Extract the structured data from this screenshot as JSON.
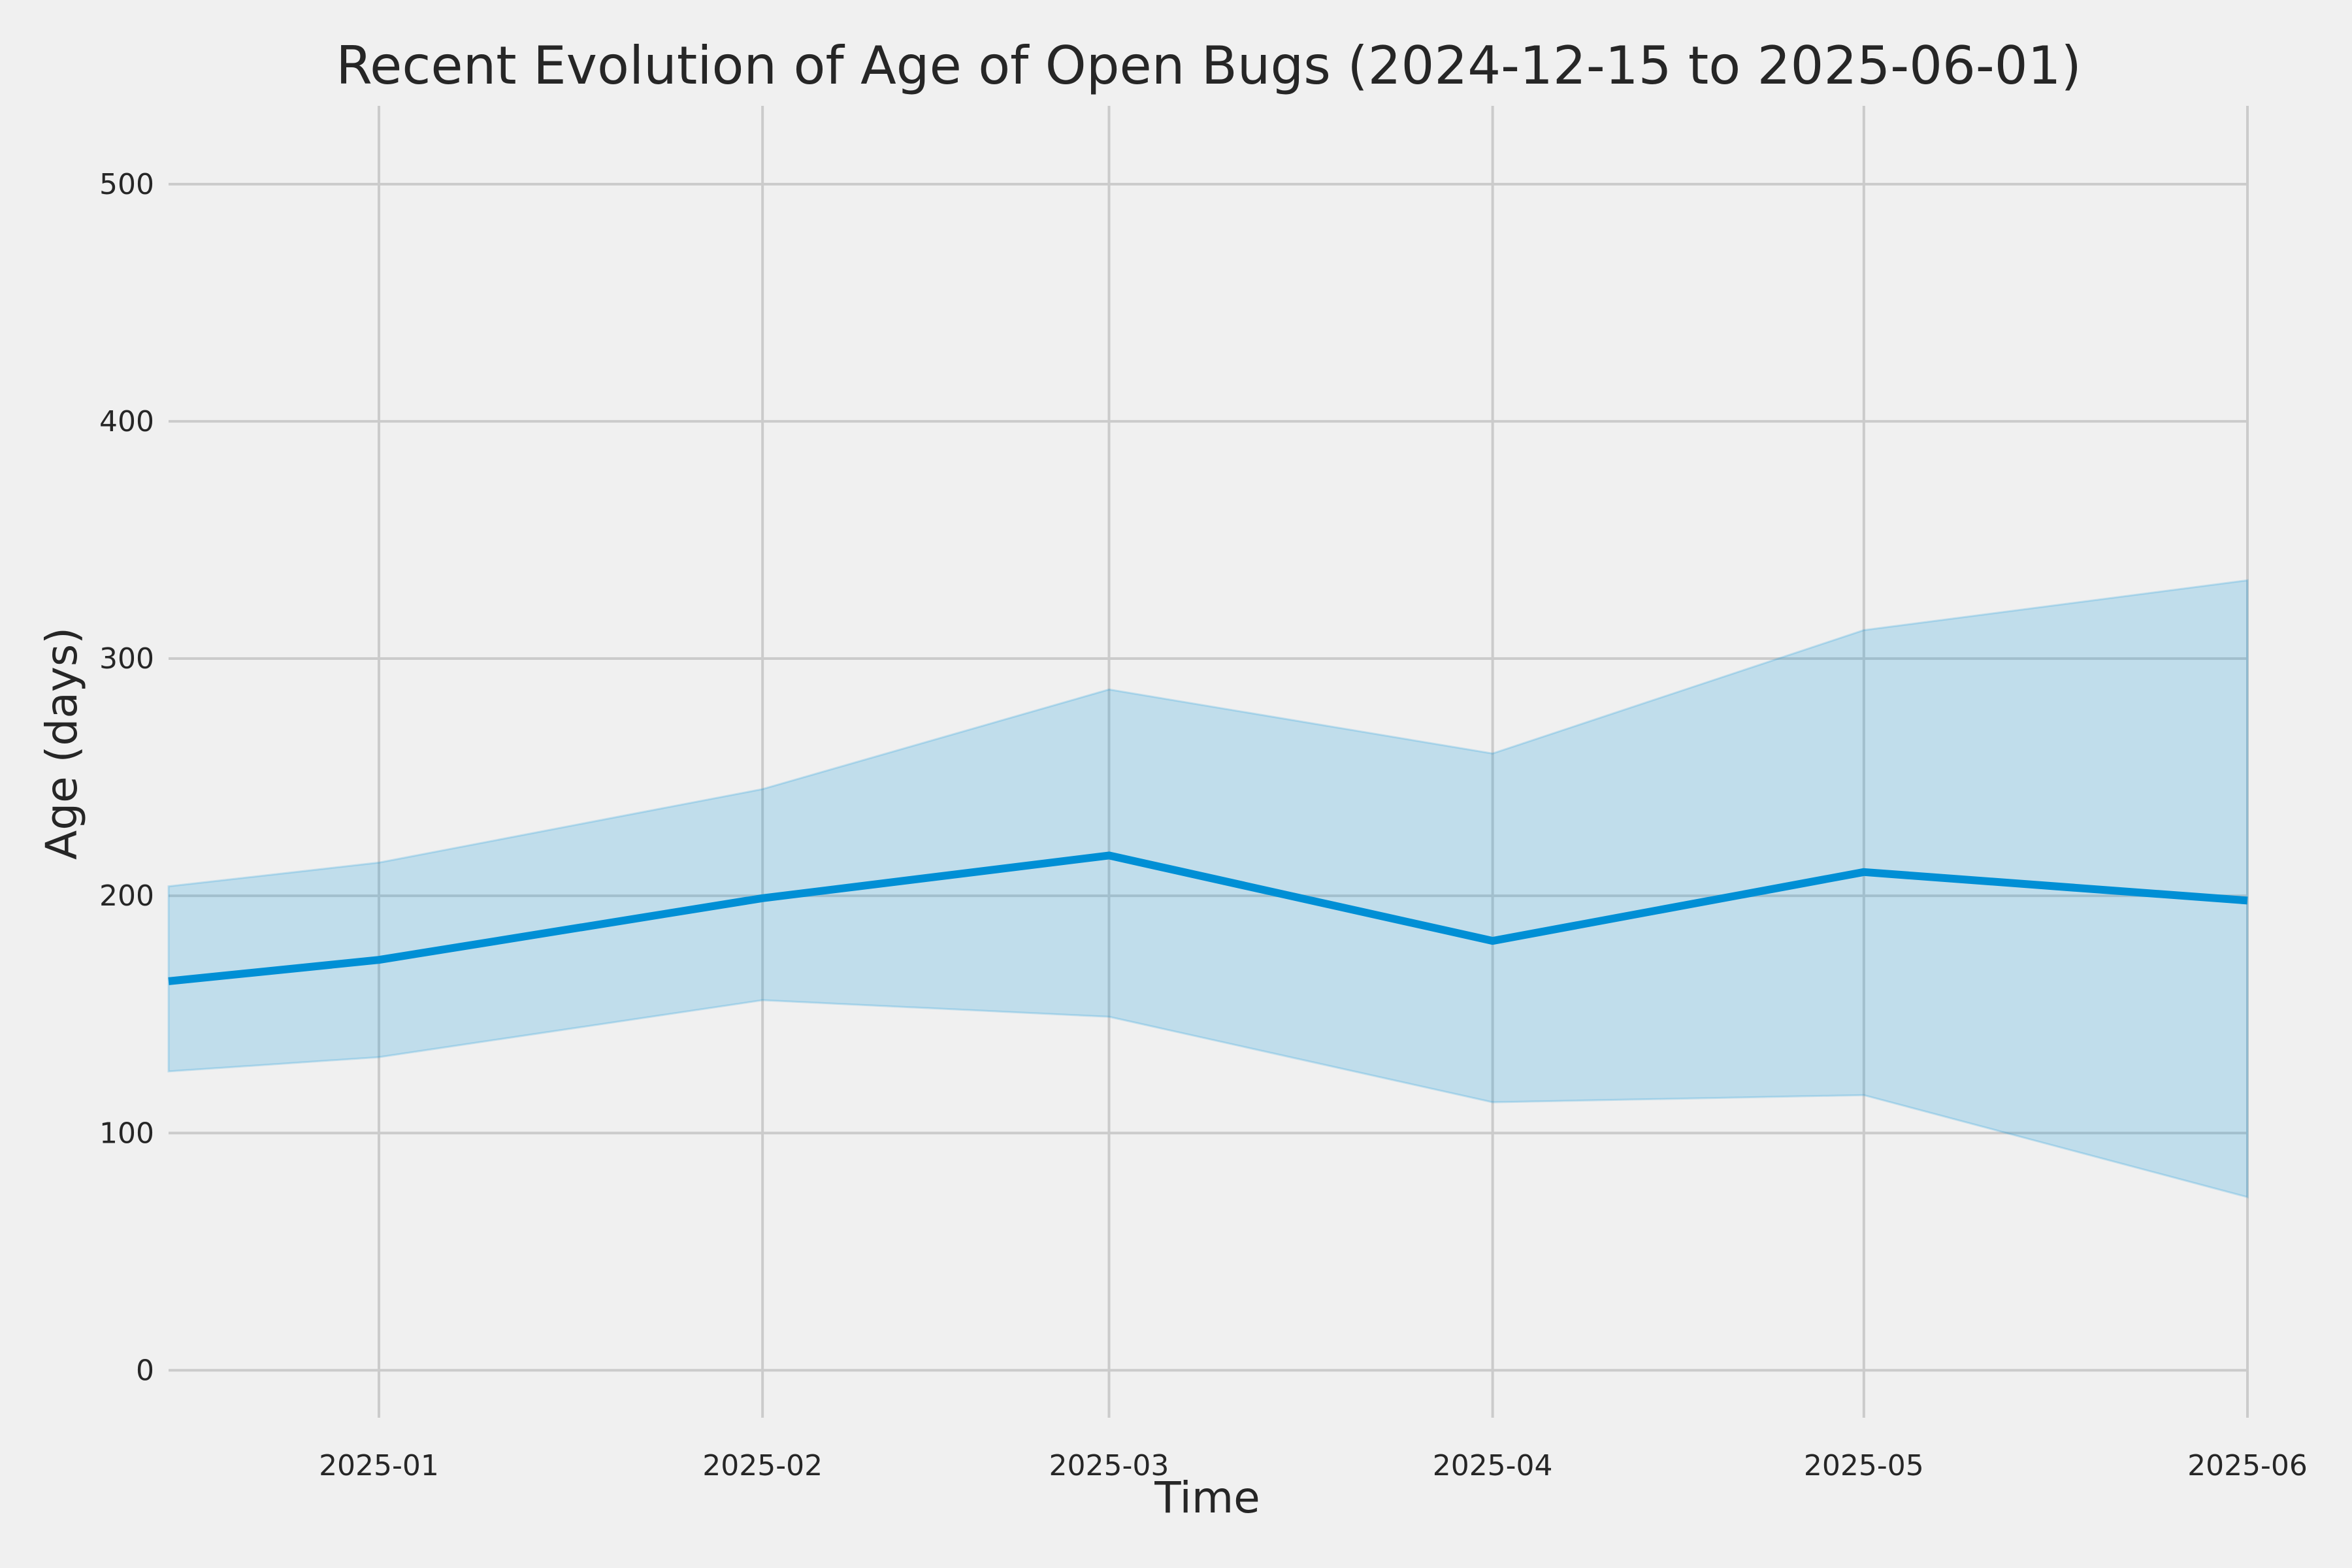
{
  "chart_data": {
    "type": "line",
    "title": "Recent Evolution of Age of Open Bugs (2024-12-15 to 2025-06-01)",
    "xlabel": "Time",
    "ylabel": "Age (days)",
    "xlim": [
      "2024-12-15",
      "2025-06-01"
    ],
    "ylim": [
      -20,
      533
    ],
    "grid": true,
    "legend": "none",
    "x_ticks": [
      {
        "date": "2025-01-01",
        "label": "2025-01"
      },
      {
        "date": "2025-02-01",
        "label": "2025-02"
      },
      {
        "date": "2025-03-01",
        "label": "2025-03"
      },
      {
        "date": "2025-04-01",
        "label": "2025-04"
      },
      {
        "date": "2025-05-01",
        "label": "2025-05"
      },
      {
        "date": "2025-06-01",
        "label": "2025-06"
      }
    ],
    "y_ticks": [
      0,
      100,
      200,
      300,
      400,
      500
    ],
    "x": [
      "2024-12-15",
      "2025-01-01",
      "2025-02-01",
      "2025-03-01",
      "2025-04-01",
      "2025-05-01",
      "2025-06-01"
    ],
    "series": [
      {
        "values": [
          164,
          173,
          199,
          217,
          181,
          210,
          198
        ],
        "lower": [
          126,
          132,
          156,
          149,
          113,
          116,
          73
        ],
        "upper": [
          204,
          214,
          245,
          287,
          260,
          312,
          333
        ],
        "color": "#008fd5"
      }
    ]
  }
}
